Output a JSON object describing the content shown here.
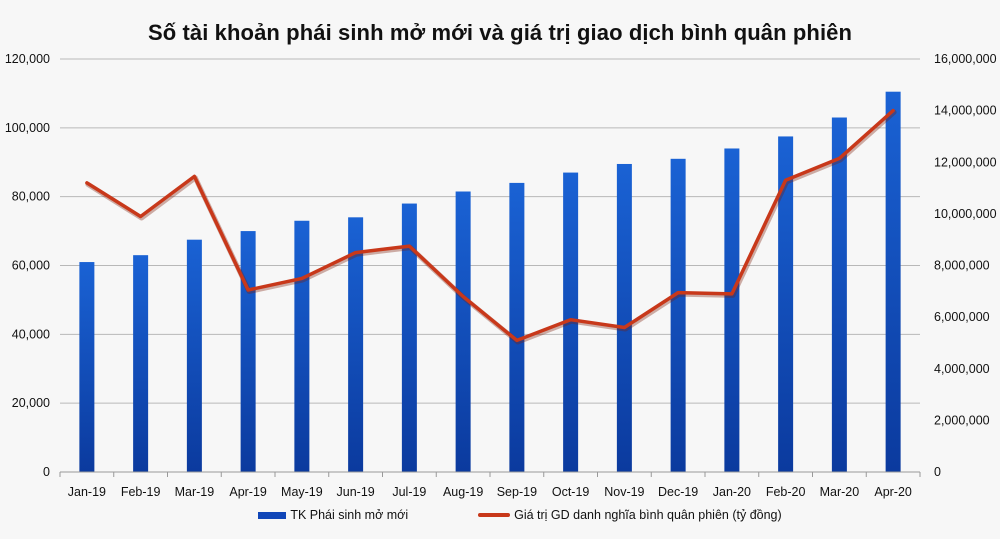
{
  "title": "Số tài khoản phái sinh mở mới và giá trị giao dịch bình quân phiên",
  "legend": {
    "bar_label": "TK Phái sinh mở mới",
    "line_label": "Giá trị GD danh nghĩa bình quân phiên (tỷ đồng)"
  },
  "colors": {
    "bar": "#1046b8",
    "bar_light": "#1a5fd0",
    "line": "#c8381a",
    "grid": "#b8b8b8",
    "background": "#f7f7f7"
  },
  "chart_data": {
    "type": "bar",
    "title": "Số tài khoản phái sinh mở mới và giá trị giao dịch bình quân phiên",
    "xlabel": "",
    "ylabel": "",
    "y2label": "",
    "grid": true,
    "legend_position": "bottom",
    "categories": [
      "Jan-19",
      "Feb-19",
      "Mar-19",
      "Apr-19",
      "May-19",
      "Jun-19",
      "Jul-19",
      "Aug-19",
      "Sep-19",
      "Oct-19",
      "Nov-19",
      "Dec-19",
      "Jan-20",
      "Feb-20",
      "Mar-20",
      "Apr-20"
    ],
    "ylim": [
      0,
      120000
    ],
    "y_ticks": [
      "0",
      "20,000",
      "40,000",
      "60,000",
      "80,000",
      "100,000",
      "120,000"
    ],
    "y2lim": [
      0,
      16000000
    ],
    "y2_ticks": [
      "0",
      "2,000,000",
      "4,000,000",
      "6,000,000",
      "8,000,000",
      "10,000,000",
      "12,000,000",
      "14,000,000",
      "16,000,000"
    ],
    "series": [
      {
        "name": "TK Phái sinh mở mới",
        "type": "bar",
        "axis": "left",
        "values": [
          61000,
          63000,
          67500,
          70000,
          73000,
          74000,
          78000,
          81500,
          84000,
          87000,
          89500,
          91000,
          94000,
          97500,
          103000,
          110500
        ]
      },
      {
        "name": "Giá trị GD danh nghĩa bình quân phiên (tỷ đồng)",
        "type": "line",
        "axis": "right",
        "values": [
          11200000,
          9900000,
          11450000,
          7050000,
          7500000,
          8500000,
          8750000,
          6800000,
          5100000,
          5900000,
          5600000,
          6950000,
          6900000,
          11300000,
          12150000,
          14000000
        ]
      }
    ]
  }
}
